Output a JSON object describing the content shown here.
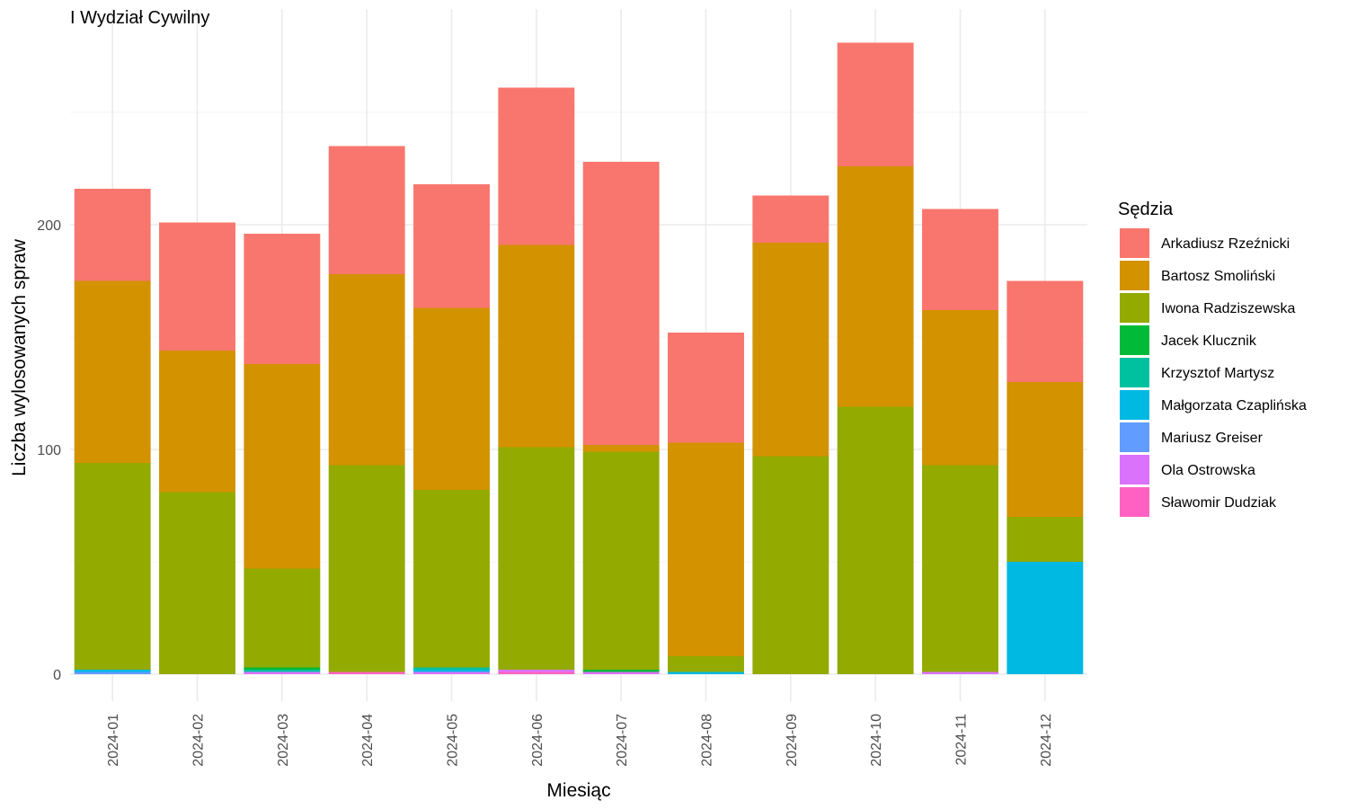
{
  "chart_data": {
    "type": "bar",
    "stacked": true,
    "title": "I Wydział Cywilny",
    "xlabel": "Miesiąc",
    "ylabel": "Liczba wylosowanych spraw",
    "ylim": [
      -12,
      290
    ],
    "yticks": [
      0,
      100,
      200
    ],
    "grid": true,
    "legend_position": "right",
    "legend_title": "Sędzia",
    "categories": [
      "2024-01",
      "2024-02",
      "2024-03",
      "2024-04",
      "2024-05",
      "2024-06",
      "2024-07",
      "2024-08",
      "2024-09",
      "2024-10",
      "2024-11",
      "2024-12"
    ],
    "series": [
      {
        "name": "Sławomir Dudziak",
        "color": "#FF61C3",
        "values": [
          0,
          0,
          0,
          1,
          0,
          1,
          0,
          0,
          0,
          0,
          0,
          0
        ]
      },
      {
        "name": "Ola Ostrowska",
        "color": "#DB72FB",
        "values": [
          0,
          0,
          1,
          0,
          1,
          1,
          1,
          0,
          0,
          0,
          1,
          0
        ]
      },
      {
        "name": "Mariusz Greiser",
        "color": "#619CFF",
        "values": [
          1,
          0,
          0,
          0,
          0,
          0,
          0,
          0,
          0,
          0,
          0,
          0
        ]
      },
      {
        "name": "Małgorzata Czaplińska",
        "color": "#00B9E3",
        "values": [
          1,
          0,
          0,
          0,
          1,
          0,
          0,
          1,
          0,
          0,
          0,
          50
        ]
      },
      {
        "name": "Krzysztof Martysz",
        "color": "#00C19F",
        "values": [
          0,
          0,
          1,
          0,
          1,
          0,
          0,
          0,
          0,
          0,
          0,
          0
        ]
      },
      {
        "name": "Jacek Klucznik",
        "color": "#00BA38",
        "values": [
          0,
          0,
          1,
          0,
          0,
          0,
          1,
          0,
          0,
          0,
          0,
          0
        ]
      },
      {
        "name": "Iwona Radziszewska",
        "color": "#93AA00",
        "values": [
          92,
          81,
          44,
          92,
          79,
          99,
          97,
          7,
          97,
          119,
          92,
          20
        ]
      },
      {
        "name": "Bartosz Smoliński",
        "color": "#D39200",
        "values": [
          81,
          63,
          91,
          85,
          81,
          90,
          3,
          95,
          95,
          107,
          69,
          60
        ]
      },
      {
        "name": "Arkadiusz Rzeźnicki",
        "color": "#F8766D",
        "values": [
          41,
          57,
          58,
          57,
          55,
          70,
          126,
          49,
          21,
          55,
          45,
          45
        ]
      }
    ],
    "legend_order": [
      "Arkadiusz Rzeźnicki",
      "Bartosz Smoliński",
      "Iwona Radziszewska",
      "Jacek Klucznik",
      "Krzysztof Martysz",
      "Małgorzata Czaplińska",
      "Mariusz Greiser",
      "Ola Ostrowska",
      "Sławomir Dudziak"
    ]
  }
}
